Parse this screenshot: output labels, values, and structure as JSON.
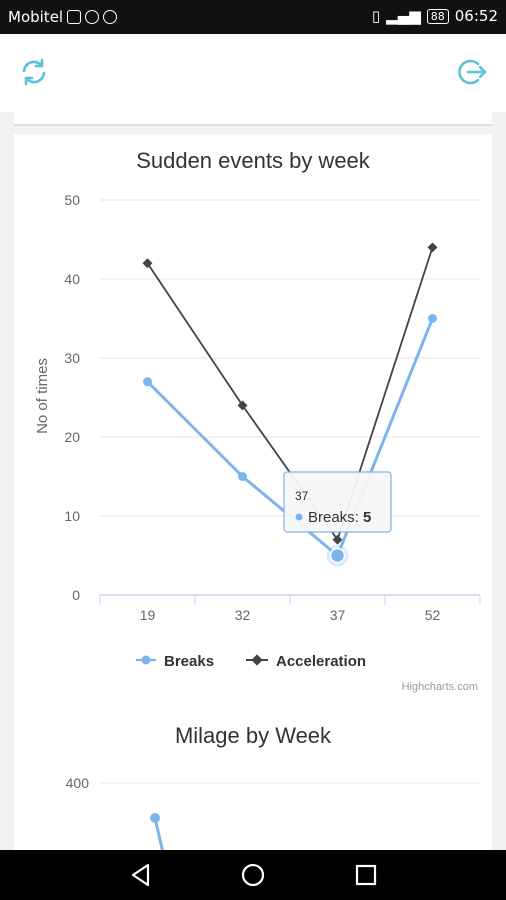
{
  "status_bar": {
    "carrier": "Mobitel",
    "battery": "88",
    "time": "06:52",
    "icons": [
      "check-icon",
      "viber-icon",
      "whatsapp-icon",
      "vibrate-icon",
      "signal-icon",
      "battery-icon"
    ]
  },
  "app_bar": {
    "left_icon": "refresh-icon",
    "right_icon": "logout-icon",
    "accent": "#5bc0de"
  },
  "chart1": {
    "title": "Sudden events by week",
    "tooltip": {
      "header": "37",
      "series": "Breaks",
      "value": "5"
    },
    "credits": "Highcharts.com"
  },
  "chart2": {
    "title": "Milage by Week"
  },
  "chart_data": [
    {
      "type": "line",
      "title": "Sudden events by week",
      "xlabel": "",
      "ylabel": "No of times",
      "categories": [
        "19",
        "32",
        "37",
        "52"
      ],
      "ylim": [
        0,
        50
      ],
      "yticks": [
        0,
        10,
        20,
        30,
        40,
        50
      ],
      "grid": true,
      "legend": "bottom",
      "series": [
        {
          "name": "Breaks",
          "values": [
            27,
            15,
            5,
            35
          ],
          "color": "#7cb5ec"
        },
        {
          "name": "Acceleration",
          "values": [
            42,
            24,
            7,
            44
          ],
          "color": "#434348"
        }
      ]
    },
    {
      "type": "line",
      "title": "Milage by Week",
      "yticks": [
        400
      ],
      "series": [
        {
          "values": [
            330
          ],
          "color": "#7cb5ec"
        }
      ]
    }
  ],
  "nav_bar": {
    "icons": [
      "back-icon",
      "home-icon",
      "recents-icon"
    ]
  }
}
